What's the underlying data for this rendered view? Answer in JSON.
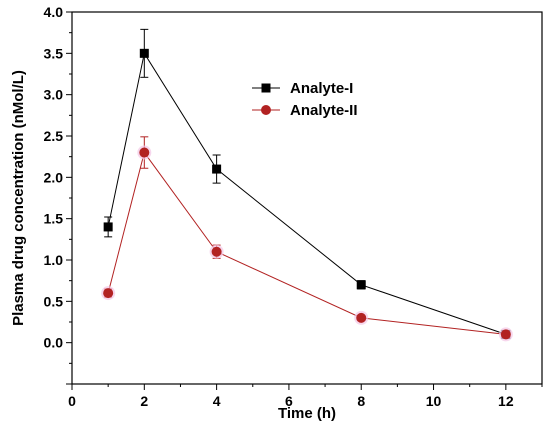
{
  "chart_data": {
    "type": "line",
    "xlabel": "Time (h)",
    "ylabel": "Plasma drug concentration (nMol/L)",
    "xlim": [
      0,
      13
    ],
    "ylim": [
      -0.5,
      4.0
    ],
    "x_ticks": [
      "0",
      "2",
      "4",
      "6",
      "8",
      "10",
      "12"
    ],
    "y_ticks": [
      "0.0",
      "0.5",
      "1.0",
      "1.5",
      "2.0",
      "2.5",
      "3.0",
      "3.5",
      "4.0"
    ],
    "x": [
      1,
      2,
      4,
      8,
      12
    ],
    "series": [
      {
        "name": "Analyte-I",
        "values": [
          1.4,
          3.5,
          2.1,
          0.7,
          0.1
        ],
        "errors": [
          0.12,
          0.29,
          0.17,
          0.05,
          0.03
        ],
        "color": "#000000",
        "marker": "square"
      },
      {
        "name": "Analyte-II",
        "values": [
          0.6,
          2.3,
          1.1,
          0.3,
          0.1
        ],
        "errors": [
          0.05,
          0.19,
          0.08,
          0.03,
          0.02
        ],
        "color": "#b22222",
        "marker": "circle"
      }
    ],
    "legend_position": "top-right"
  }
}
